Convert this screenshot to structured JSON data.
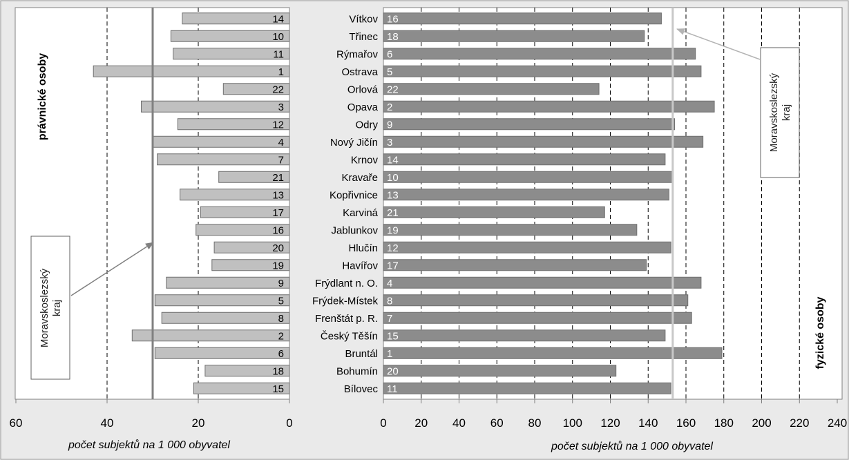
{
  "chart_data": {
    "type": "bar",
    "categories": [
      "Vítkov",
      "Třinec",
      "Rýmařov",
      "Ostrava",
      "Orlová",
      "Opava",
      "Odry",
      "Nový Jičín",
      "Krnov",
      "Kravaře",
      "Kopřivnice",
      "Karviná",
      "Jablunkov",
      "Hlučín",
      "Havířov",
      "Frýdlant n. O.",
      "Frýdek-Místek",
      "Frenštát p. R.",
      "Český Těšín",
      "Bruntál",
      "Bohumín",
      "Bílovec"
    ],
    "left_panel": {
      "label": "právnické osoby",
      "values": [
        23.5,
        26,
        25.5,
        43,
        14.5,
        32.5,
        24.5,
        30,
        29,
        15.5,
        24,
        19.5,
        20.5,
        16.5,
        17,
        27,
        29.5,
        28,
        34.5,
        29.5,
        18.5,
        21
      ],
      "ranks": [
        "14",
        "10",
        "11",
        "1",
        "22",
        "3",
        "12",
        "4",
        "7",
        "21",
        "13",
        "17",
        "16",
        "20",
        "19",
        "9",
        "5",
        "8",
        "2",
        "6",
        "18",
        "15"
      ],
      "xlim": [
        60,
        0
      ],
      "xticks": [
        "60",
        "40",
        "20",
        "0"
      ],
      "xlabel": "počet subjektů na 1 000 obyvatel",
      "reference": {
        "label_line1": "Moravskoslezský",
        "label_line2": "kraj",
        "value": 30
      }
    },
    "right_panel": {
      "label": "fyzické osoby",
      "values": [
        147,
        138,
        165,
        168,
        114,
        175,
        154,
        169,
        149,
        153,
        151,
        117,
        134,
        152,
        139,
        168,
        161,
        163,
        149,
        179,
        123,
        152
      ],
      "ranks": [
        "16",
        "18",
        "6",
        "5",
        "22",
        "2",
        "9",
        "3",
        "14",
        "10",
        "13",
        "21",
        "19",
        "12",
        "17",
        "4",
        "8",
        "7",
        "15",
        "1",
        "20",
        "11"
      ],
      "xlim": [
        0,
        240
      ],
      "xticks": [
        "0",
        "20",
        "40",
        "60",
        "80",
        "100",
        "120",
        "140",
        "160",
        "180",
        "200",
        "220",
        "240"
      ],
      "xlabel": "počet subjektů na 1 000 obyvatel",
      "reference": {
        "label_line1": "Moravskoslezský",
        "label_line2": "kraj",
        "value": 153
      }
    },
    "colors": {
      "left_bar": "#c0c0c0",
      "right_bar": "#8c8c8c",
      "bar_border": "#6e6e6e",
      "background": "#eaeaea",
      "plot_bg": "#ffffff",
      "ref_left": "#808080",
      "ref_right": "#c8c8c8"
    },
    "grid": "dashed-vertical"
  }
}
